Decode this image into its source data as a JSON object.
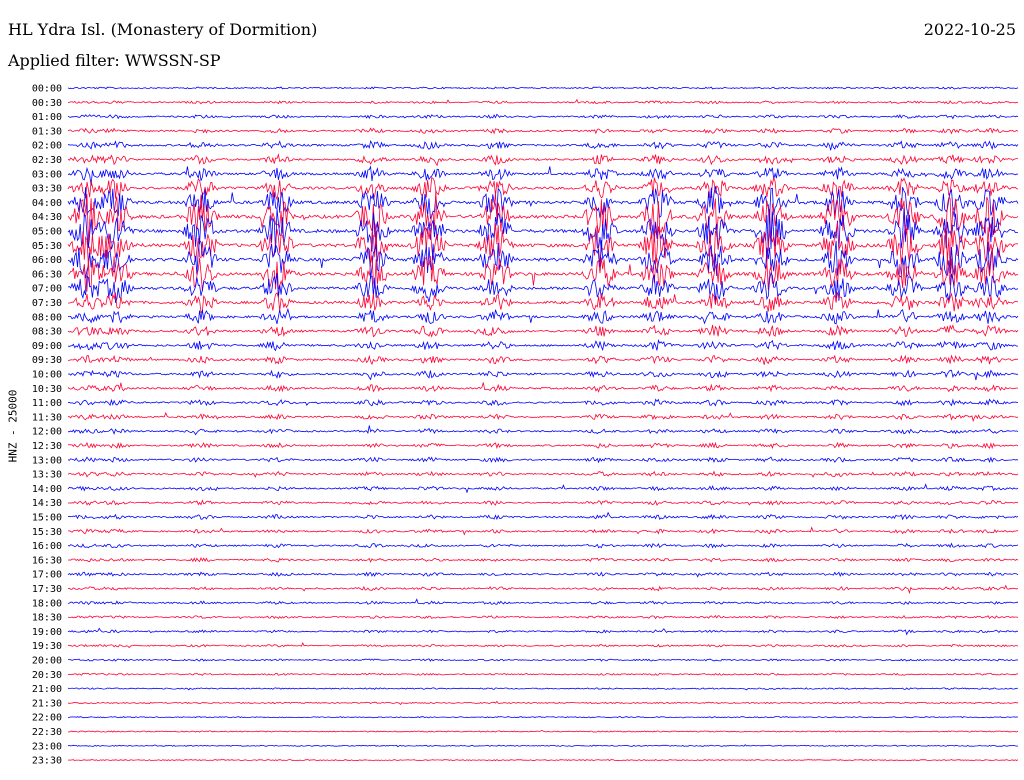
{
  "header": {
    "title": "HL Ydra Isl. (Monastery of Dormition)",
    "date": "2022-10-25",
    "filter": "Applied filter: WWSSN-SP"
  },
  "chart_data": {
    "type": "line",
    "subtype": "helicorder",
    "title": "HL Ydra Isl. (Monastery of Dormition)",
    "ylabel": "HNZ - 25000",
    "row_labels": [
      "00:00",
      "00:30",
      "01:00",
      "01:30",
      "02:00",
      "02:30",
      "03:00",
      "03:30",
      "04:00",
      "04:30",
      "05:00",
      "05:30",
      "06:00",
      "06:30",
      "07:00",
      "07:30",
      "08:00",
      "08:30",
      "09:00",
      "09:30",
      "10:00",
      "10:30",
      "11:00",
      "11:30",
      "12:00",
      "12:30",
      "13:00",
      "13:30",
      "14:00",
      "14:30",
      "15:00",
      "15:30",
      "16:00",
      "16:30",
      "17:00",
      "17:30",
      "18:00",
      "18:30",
      "19:00",
      "19:30",
      "20:00",
      "20:30",
      "21:00",
      "21:30",
      "22:00",
      "22:30",
      "23:00",
      "23:30"
    ],
    "series_colors": [
      "#0000ff",
      "#ff0033"
    ],
    "activity_profile": [
      0.15,
      0.2,
      0.25,
      0.3,
      0.4,
      0.45,
      0.55,
      0.7,
      0.85,
      1.0,
      1.0,
      1.0,
      0.95,
      0.9,
      0.8,
      0.65,
      0.55,
      0.5,
      0.45,
      0.4,
      0.38,
      0.36,
      0.34,
      0.32,
      0.3,
      0.3,
      0.3,
      0.3,
      0.28,
      0.28,
      0.28,
      0.27,
      0.26,
      0.25,
      0.25,
      0.24,
      0.22,
      0.2,
      0.2,
      0.18,
      0.16,
      0.15,
      0.12,
      0.1,
      0.08,
      0.08,
      0.06,
      0.05
    ],
    "grid": false
  }
}
